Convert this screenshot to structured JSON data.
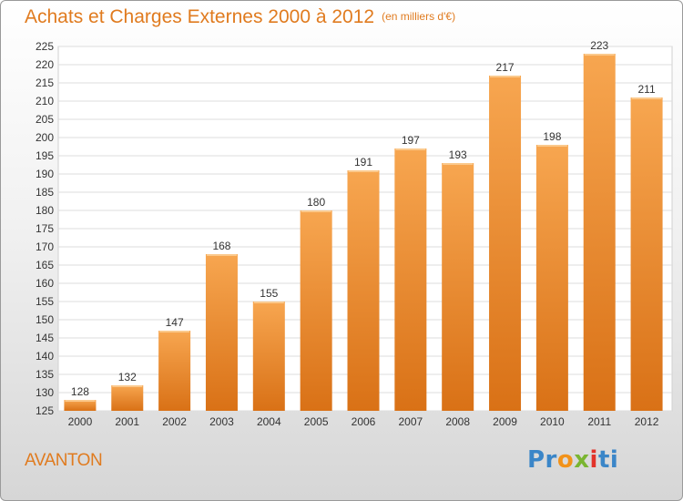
{
  "title": "Achats et Charges Externes 2000 à 2012",
  "unit": "(en milliers d'€)",
  "city": "AVANTON",
  "logo": {
    "p1": "Pr",
    "p2": "o",
    "p3": "x",
    "p4": "i",
    "p5": "ti"
  },
  "colors": {
    "accent": "#e07b1f",
    "bar_top": "#f7a650",
    "bar_bottom": "#d97116"
  },
  "chart_data": {
    "type": "bar",
    "title": "Achats et Charges Externes 2000 à 2012",
    "categories": [
      "2000",
      "2001",
      "2002",
      "2003",
      "2004",
      "2005",
      "2006",
      "2007",
      "2008",
      "2009",
      "2010",
      "2011",
      "2012"
    ],
    "values": [
      128,
      132,
      147,
      168,
      155,
      180,
      191,
      197,
      193,
      217,
      198,
      223,
      211
    ],
    "ylim": [
      125,
      225
    ],
    "yticks": [
      125,
      130,
      135,
      140,
      145,
      150,
      155,
      160,
      165,
      170,
      175,
      180,
      185,
      190,
      195,
      200,
      205,
      210,
      215,
      220,
      225
    ],
    "grid": true,
    "legend": "none"
  }
}
